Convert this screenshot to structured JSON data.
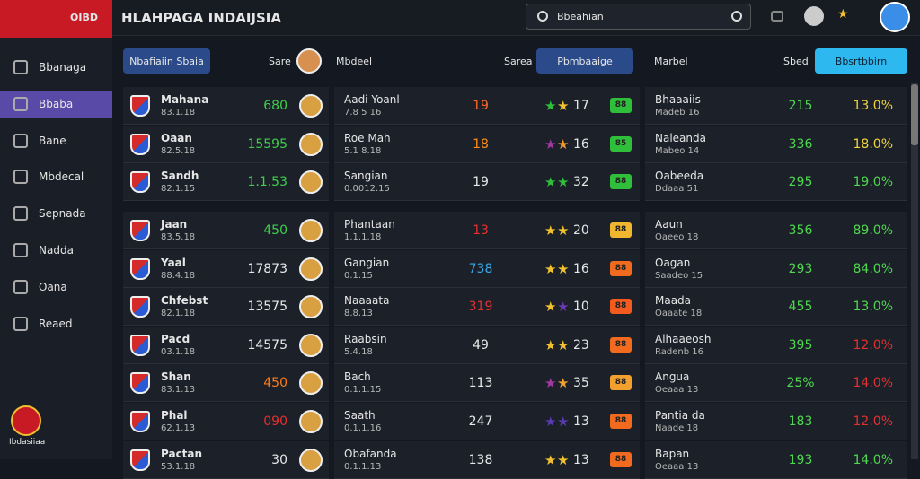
{
  "header": {
    "logo": "OIBD",
    "title": "HLAHPAGA INDAIJSIA",
    "search": "Bbeahian"
  },
  "toolbar": {
    "left_button": "Nbafiaiin Sbaia",
    "label1": "Sare",
    "label2": "Mbdeel",
    "label3": "Sarea",
    "mid_button": "Pbmbaaige",
    "label4": "Marbel",
    "label5": "Sbed",
    "right_button": "Bbsrtbbirn"
  },
  "sidebar": {
    "items": [
      "Bbanaga",
      "Bbaba",
      "Bane",
      "Mbdecal",
      "Sepnada",
      "Nadda",
      "Oana",
      "Reaed"
    ],
    "active": 1,
    "footer": "Ibdasiiaa"
  },
  "table": {
    "groups": [
      [
        {
          "name": "Mahana",
          "sub": "83.1.18",
          "value": "680",
          "value_color": "#3fcf4a",
          "name2": "Aadi Yoanl",
          "sub2": "7.8 5 16",
          "num2": "19",
          "num2_color": "#ff6a2a",
          "stars": [
            "#2fbf3a",
            "#f2c12e"
          ],
          "rating": "17",
          "badge": "88",
          "badge_color": "#2fbf3a",
          "name3": "Bhaaaiis",
          "sub3": "Madeb 16",
          "num3": "215",
          "num3_color": "#4fd84f",
          "pct": "13.0%",
          "pct_color": "#f2d53c"
        },
        {
          "name": "Oaan",
          "sub": "82.5.18",
          "value": "15595",
          "value_color": "#3fcf4a",
          "name2": "Roe Mah",
          "sub2": "5.1 8.18",
          "num2": "18",
          "num2_color": "#ff8a1a",
          "stars": [
            "#a03aa0",
            "#f29a2e"
          ],
          "rating": "16",
          "badge": "85",
          "badge_color": "#2fbf3a",
          "name3": "Naleanda",
          "sub3": "Mabeo 14",
          "num3": "336",
          "num3_color": "#4fd84f",
          "pct": "18.0%",
          "pct_color": "#f2d53c"
        },
        {
          "name": "Sandh",
          "sub": "82.1.15",
          "value": "1.1.53",
          "value_color": "#3fcf4a",
          "name2": "Sangian",
          "sub2": "0.0012.15",
          "num2": "19",
          "num2_color": "#e8e8e8",
          "stars": [
            "#2fbf3a",
            "#2fbf3a"
          ],
          "rating": "32",
          "badge": "88",
          "badge_color": "#2fbf3a",
          "name3": "Oabeeda",
          "sub3": "Ddaaa 51",
          "num3": "295",
          "num3_color": "#4fd84f",
          "pct": "19.0%",
          "pct_color": "#4fd84f"
        }
      ],
      [
        {
          "name": "Jaan",
          "sub": "83.5.18",
          "value": "450",
          "value_color": "#3fcf4a",
          "name2": "Phantaan",
          "sub2": "1.1.1.18",
          "num2": "13",
          "num2_color": "#e63030",
          "stars": [
            "#f2c12e",
            "#f2c12e"
          ],
          "rating": "20",
          "badge": "88",
          "badge_color": "#f2b52e",
          "name3": "Aaun",
          "sub3": "Oaeeo 18",
          "num3": "356",
          "num3_color": "#4fd84f",
          "pct": "89.0%",
          "pct_color": "#4fd84f"
        },
        {
          "name": "Yaal",
          "sub": "88.4.18",
          "value": "17873",
          "value_color": "#e8e8e8",
          "name2": "Gangian",
          "sub2": "0.1.15",
          "num2": "738",
          "num2_color": "#3aa8e8",
          "stars": [
            "#f2c12e",
            "#f2c12e"
          ],
          "rating": "16",
          "badge": "88",
          "badge_color": "#f26a1e",
          "name3": "Oagan",
          "sub3": "Saadeo 15",
          "num3": "293",
          "num3_color": "#4fd84f",
          "pct": "84.0%",
          "pct_color": "#4fd84f"
        },
        {
          "name": "Chfebst",
          "sub": "82.1.18",
          "value": "13575",
          "value_color": "#e8e8e8",
          "name2": "Naaaata",
          "sub2": "8.8.13",
          "num2": "319",
          "num2_color": "#e63030",
          "stars": [
            "#f2c12e",
            "#6a3ab0"
          ],
          "rating": "10",
          "badge": "88",
          "badge_color": "#f25a1e",
          "name3": "Maada",
          "sub3": "Oaaate 18",
          "num3": "455",
          "num3_color": "#4fd84f",
          "pct": "13.0%",
          "pct_color": "#4fd84f"
        },
        {
          "name": "Pacd",
          "sub": "03.1.18",
          "value": "14575",
          "value_color": "#e8e8e8",
          "name2": "Raabsin",
          "sub2": "5.4.18",
          "num2": "49",
          "num2_color": "#e8e8e8",
          "stars": [
            "#f2c12e",
            "#f2c12e"
          ],
          "rating": "23",
          "badge": "88",
          "badge_color": "#f26a1e",
          "name3": "Alhaaeosh",
          "sub3": "Radenb 16",
          "num3": "395",
          "num3_color": "#4fd84f",
          "pct": "12.0%",
          "pct_color": "#e63030"
        },
        {
          "name": "Shan",
          "sub": "83.1.13",
          "value": "450",
          "value_color": "#ff7a1a",
          "name2": "Bach",
          "sub2": "0.1.1.15",
          "num2": "113",
          "num2_color": "#e8e8e8",
          "stars": [
            "#a03aa0",
            "#f2a02e"
          ],
          "rating": "35",
          "badge": "88",
          "badge_color": "#f2a02e",
          "name3": "Angua",
          "sub3": "Oeaaa 13",
          "num3": "25%",
          "num3_color": "#4fd84f",
          "pct": "14.0%",
          "pct_color": "#e63030"
        },
        {
          "name": "Phal",
          "sub": "62.1.13",
          "value": "090",
          "value_color": "#e63030",
          "name2": "Saath",
          "sub2": "0.1.1.16",
          "num2": "247",
          "num2_color": "#e8e8e8",
          "stars": [
            "#5a3ab0",
            "#5a3ab0"
          ],
          "rating": "13",
          "badge": "88",
          "badge_color": "#f26a1e",
          "name3": "Pantia da",
          "sub3": "Naade 18",
          "num3": "183",
          "num3_color": "#4fd84f",
          "pct": "12.0%",
          "pct_color": "#e63030"
        },
        {
          "name": "Pactan",
          "sub": "53.1.18",
          "value": "30",
          "value_color": "#e8e8e8",
          "name2": "Obafanda",
          "sub2": "0.1.1.13",
          "num2": "138",
          "num2_color": "#e8e8e8",
          "stars": [
            "#f2c12e",
            "#f2c12e"
          ],
          "rating": "13",
          "badge": "88",
          "badge_color": "#f26a1e",
          "name3": "Bapan",
          "sub3": "Oeaaa 13",
          "num3": "193",
          "num3_color": "#4fd84f",
          "pct": "14.0%",
          "pct_color": "#4fd84f"
        }
      ]
    ]
  }
}
